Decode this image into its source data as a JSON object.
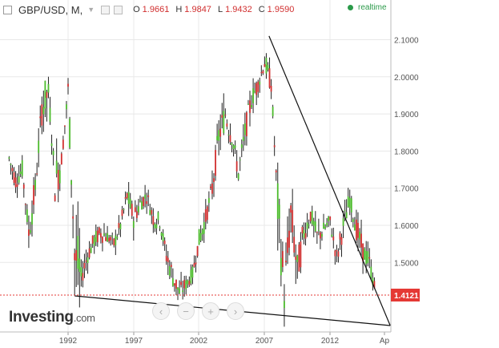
{
  "header": {
    "title": "GBP/USD, M,",
    "ohlc": [
      {
        "key": "O",
        "value": "1.9661"
      },
      {
        "key": "H",
        "value": "1.9847"
      },
      {
        "key": "L",
        "value": "1.9432"
      },
      {
        "key": "C",
        "value": "1.9590"
      }
    ],
    "realtime_label": "realtime"
  },
  "logo": {
    "brand": "Investing",
    "domain": ".com"
  },
  "nav_buttons": [
    "chevron-left-icon",
    "zoom-out-icon",
    "zoom-in-icon",
    "chevron-right-icon"
  ],
  "colors": {
    "up": "#4cbc2c",
    "down": "#d12f2f",
    "grid": "#e8e8e8",
    "realtime": "#2b9a4a",
    "price_tag": "#e53935"
  },
  "chart_data": {
    "type": "candlestick",
    "symbol": "GBP/USD",
    "timeframe": "M",
    "x_ticks": [
      "1992",
      "1997",
      "2002",
      "2007",
      "2012",
      "Ap"
    ],
    "y_ticks": [
      "1.5000",
      "1.6000",
      "1.7000",
      "1.8000",
      "1.9000",
      "2.0000",
      "2.1000"
    ],
    "ylim": [
      1.34,
      2.2
    ],
    "current_price": "1.4121",
    "candles_approx": [
      [
        "1988-01",
        1.8,
        1.83,
        1.72,
        1.78
      ],
      [
        "1988-07",
        1.78,
        1.8,
        1.68,
        1.72
      ],
      [
        "1989-01",
        1.72,
        1.78,
        1.66,
        1.75
      ],
      [
        "1989-07",
        1.75,
        1.76,
        1.55,
        1.58
      ],
      [
        "1990-01",
        1.58,
        1.72,
        1.56,
        1.7
      ],
      [
        "1990-07",
        1.7,
        1.96,
        1.68,
        1.92
      ],
      [
        "1991-01",
        1.92,
        1.99,
        1.86,
        1.96
      ],
      [
        "1991-07",
        1.96,
        1.98,
        1.67,
        1.72
      ],
      [
        "1992-01",
        1.72,
        1.8,
        1.7,
        1.78
      ],
      [
        "1992-07",
        1.78,
        2.01,
        1.76,
        1.96
      ],
      [
        "1993-01",
        1.96,
        1.97,
        1.5,
        1.52
      ],
      [
        "1993-07",
        1.52,
        1.55,
        1.42,
        1.46
      ],
      [
        "1994-01",
        1.46,
        1.55,
        1.44,
        1.52
      ],
      [
        "1994-07",
        1.52,
        1.59,
        1.48,
        1.56
      ],
      [
        "1995-01",
        1.56,
        1.64,
        1.52,
        1.58
      ],
      [
        "1995-07",
        1.58,
        1.61,
        1.53,
        1.57
      ],
      [
        "1996-01",
        1.57,
        1.6,
        1.5,
        1.55
      ],
      [
        "1996-07",
        1.55,
        1.63,
        1.52,
        1.6
      ],
      [
        "1997-01",
        1.6,
        1.72,
        1.58,
        1.68
      ],
      [
        "1997-07",
        1.68,
        1.71,
        1.57,
        1.62
      ],
      [
        "1998-01",
        1.62,
        1.7,
        1.6,
        1.66
      ],
      [
        "1998-07",
        1.66,
        1.72,
        1.62,
        1.68
      ],
      [
        "1999-01",
        1.68,
        1.7,
        1.58,
        1.62
      ],
      [
        "1999-07",
        1.62,
        1.66,
        1.57,
        1.61
      ],
      [
        "2000-01",
        1.61,
        1.66,
        1.5,
        1.52
      ],
      [
        "2000-07",
        1.52,
        1.54,
        1.4,
        1.46
      ],
      [
        "2001-01",
        1.46,
        1.5,
        1.39,
        1.42
      ],
      [
        "2001-07",
        1.42,
        1.48,
        1.4,
        1.44
      ],
      [
        "2002-01",
        1.44,
        1.49,
        1.4,
        1.47
      ],
      [
        "2002-07",
        1.47,
        1.59,
        1.45,
        1.56
      ],
      [
        "2003-01",
        1.56,
        1.66,
        1.54,
        1.62
      ],
      [
        "2003-07",
        1.62,
        1.74,
        1.56,
        1.7
      ],
      [
        "2004-01",
        1.7,
        1.88,
        1.68,
        1.84
      ],
      [
        "2004-07",
        1.84,
        1.95,
        1.76,
        1.9
      ],
      [
        "2005-01",
        1.9,
        1.93,
        1.8,
        1.84
      ],
      [
        "2005-07",
        1.84,
        1.86,
        1.71,
        1.74
      ],
      [
        "2006-01",
        1.74,
        1.88,
        1.72,
        1.85
      ],
      [
        "2006-07",
        1.85,
        1.97,
        1.84,
        1.94
      ],
      [
        "2007-01",
        1.94,
        2.01,
        1.92,
        1.98
      ],
      [
        "2007-07",
        1.98,
        2.1,
        1.96,
        2.04
      ],
      [
        "2008-01",
        2.04,
        2.05,
        1.93,
        1.98
      ],
      [
        "2008-07",
        1.98,
        2.01,
        1.62,
        1.65
      ],
      [
        "2009-01",
        1.65,
        1.66,
        1.35,
        1.42
      ],
      [
        "2009-07",
        1.42,
        1.7,
        1.4,
        1.63
      ],
      [
        "2010-01",
        1.63,
        1.65,
        1.42,
        1.48
      ],
      [
        "2010-07",
        1.48,
        1.61,
        1.46,
        1.58
      ],
      [
        "2011-01",
        1.58,
        1.67,
        1.55,
        1.63
      ],
      [
        "2011-07",
        1.63,
        1.66,
        1.53,
        1.57
      ],
      [
        "2012-01",
        1.57,
        1.62,
        1.53,
        1.59
      ],
      [
        "2012-07",
        1.59,
        1.63,
        1.54,
        1.61
      ],
      [
        "2013-01",
        1.61,
        1.63,
        1.48,
        1.51
      ],
      [
        "2013-07",
        1.51,
        1.63,
        1.49,
        1.6
      ],
      [
        "2014-01",
        1.6,
        1.7,
        1.59,
        1.67
      ],
      [
        "2014-07",
        1.67,
        1.72,
        1.56,
        1.59
      ],
      [
        "2015-01",
        1.59,
        1.6,
        1.46,
        1.53
      ],
      [
        "2015-07",
        1.53,
        1.59,
        1.49,
        1.5
      ],
      [
        "2016-01",
        1.5,
        1.51,
        1.39,
        1.41
      ]
    ],
    "trendlines": [
      {
        "from": [
          "1993-01",
          1.41
        ],
        "to": [
          "2017-02",
          1.33
        ]
      },
      {
        "from": [
          "2007-11",
          2.11
        ],
        "to": [
          "2017-02",
          1.33
        ]
      }
    ]
  }
}
